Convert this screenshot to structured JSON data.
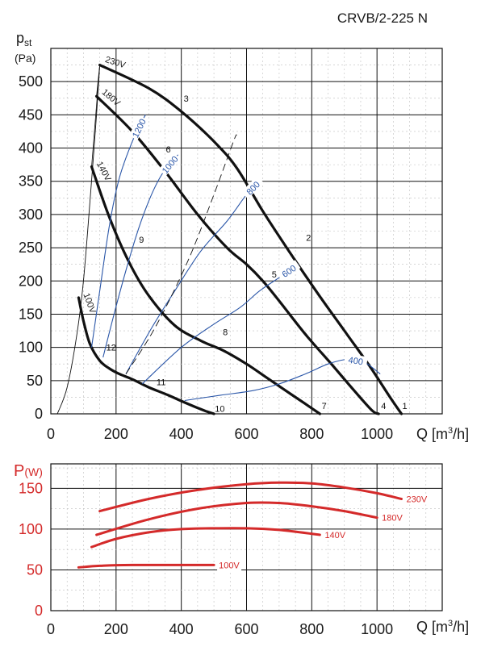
{
  "model": "CRVB/2-225 N",
  "top_chart": {
    "y_label": "p",
    "y_label_sub": "st",
    "y_unit": "(Pa)",
    "x_label": "Q [m",
    "x_label_sup": "3",
    "x_label_end": "/h]",
    "x_ticks": [
      "0",
      "200",
      "400",
      "600",
      "800",
      "1000"
    ],
    "y_ticks": [
      "0",
      "50",
      "100",
      "150",
      "200",
      "250",
      "300",
      "350",
      "400",
      "450",
      "500"
    ]
  },
  "bottom_chart": {
    "y_label": "P",
    "y_unit": "(W)",
    "x_label": "Q [m",
    "x_label_sup": "3",
    "x_label_end": "/h]",
    "x_ticks": [
      "0",
      "200",
      "400",
      "600",
      "800",
      "1000"
    ],
    "y_ticks": [
      "0",
      "50",
      "100",
      "150"
    ]
  },
  "chart_data": [
    {
      "type": "line",
      "title": "CRVB/2-225 N",
      "xlabel": "Q [m3/h]",
      "ylabel": "pst (Pa)",
      "xlim": [
        0,
        1200
      ],
      "ylim": [
        0,
        550
      ],
      "series": [
        {
          "name": "230V",
          "kind": "voltage",
          "x": [
            150,
            300,
            400,
            500,
            570,
            650,
            730,
            820,
            900,
            980,
            1040,
            1075
          ],
          "y": [
            525,
            490,
            455,
            410,
            370,
            305,
            245,
            180,
            125,
            70,
            25,
            0
          ]
        },
        {
          "name": "180V",
          "kind": "voltage",
          "x": [
            140,
            250,
            350,
            450,
            540,
            600,
            650,
            700,
            780,
            860,
            930,
            985,
            1005
          ],
          "y": [
            478,
            425,
            365,
            300,
            250,
            225,
            200,
            170,
            120,
            75,
            35,
            5,
            0
          ]
        },
        {
          "name": "140V",
          "kind": "voltage",
          "x": [
            125,
            180,
            240,
            300,
            380,
            460,
            530,
            600,
            660,
            720,
            780,
            825
          ],
          "y": [
            372,
            295,
            228,
            178,
            133,
            110,
            95,
            75,
            55,
            35,
            15,
            0
          ]
        },
        {
          "name": "100V",
          "kind": "voltage",
          "x": [
            85,
            100,
            120,
            150,
            180,
            210,
            250,
            300,
            360,
            420,
            470,
            500
          ],
          "y": [
            175,
            140,
            105,
            80,
            68,
            60,
            52,
            40,
            28,
            15,
            5,
            0
          ]
        },
        {
          "name": "1200",
          "kind": "rpm",
          "x": [
            125,
            150,
            180,
            210,
            250,
            290
          ],
          "y": [
            100,
            185,
            285,
            355,
            410,
            450
          ]
        },
        {
          "name": "1000",
          "kind": "rpm",
          "x": [
            160,
            210,
            260,
            300,
            340,
            390
          ],
          "y": [
            85,
            180,
            265,
            320,
            360,
            390
          ]
        },
        {
          "name": "800",
          "kind": "rpm",
          "x": [
            230,
            310,
            380,
            460,
            540,
            600,
            640
          ],
          "y": [
            60,
            130,
            185,
            245,
            290,
            330,
            350
          ]
        },
        {
          "name": "600",
          "kind": "rpm",
          "x": [
            280,
            400,
            500,
            580,
            640,
            700,
            760
          ],
          "y": [
            45,
            100,
            135,
            160,
            185,
            205,
            225
          ]
        },
        {
          "name": "400",
          "kind": "rpm",
          "x": [
            410,
            520,
            620,
            700,
            780,
            850,
            910,
            960,
            1010
          ],
          "y": [
            20,
            28,
            35,
            45,
            60,
            75,
            82,
            78,
            60
          ]
        },
        {
          "name": "guide-left",
          "kind": "system-line",
          "x": [
            20,
            50,
            80,
            100,
            120,
            140,
            150
          ],
          "y": [
            0,
            40,
            120,
            200,
            320,
            450,
            525
          ]
        },
        {
          "name": "guide-dashed",
          "kind": "system-line",
          "x": [
            230,
            320,
            420,
            500,
            560,
            570
          ],
          "y": [
            60,
            130,
            230,
            330,
            410,
            420
          ]
        }
      ],
      "point_labels": [
        {
          "text": "1",
          "x": 1085,
          "y": 12
        },
        {
          "text": "2",
          "x": 790,
          "y": 265
        },
        {
          "text": "3",
          "x": 415,
          "y": 475
        },
        {
          "text": "4",
          "x": 1020,
          "y": 12
        },
        {
          "text": "5",
          "x": 685,
          "y": 210
        },
        {
          "text": "6",
          "x": 360,
          "y": 398
        },
        {
          "text": "7",
          "x": 838,
          "y": 12
        },
        {
          "text": "8",
          "x": 535,
          "y": 123
        },
        {
          "text": "9",
          "x": 278,
          "y": 262
        },
        {
          "text": "10",
          "x": 518,
          "y": 8
        },
        {
          "text": "11",
          "x": 338,
          "y": 48
        },
        {
          "text": "12",
          "x": 185,
          "y": 100
        }
      ]
    },
    {
      "type": "line",
      "xlabel": "Q [m3/h]",
      "ylabel": "P (W)",
      "xlim": [
        0,
        1200
      ],
      "ylim": [
        0,
        180
      ],
      "series": [
        {
          "name": "230V",
          "x": [
            150,
            300,
            450,
            600,
            700,
            800,
            900,
            1000,
            1075
          ],
          "y": [
            122,
            137,
            148,
            155,
            157,
            156,
            151,
            144,
            137
          ]
        },
        {
          "name": "180V",
          "x": [
            140,
            300,
            450,
            600,
            700,
            800,
            900,
            1000
          ],
          "y": [
            93,
            112,
            125,
            132,
            132,
            128,
            122,
            114
          ]
        },
        {
          "name": "140V",
          "x": [
            125,
            200,
            300,
            400,
            500,
            600,
            700,
            825
          ],
          "y": [
            78,
            88,
            96,
            100,
            101,
            101,
            99,
            93
          ]
        },
        {
          "name": "100V",
          "x": [
            85,
            150,
            250,
            350,
            450,
            500
          ],
          "y": [
            53,
            55,
            56,
            56,
            56,
            56
          ]
        }
      ]
    }
  ]
}
